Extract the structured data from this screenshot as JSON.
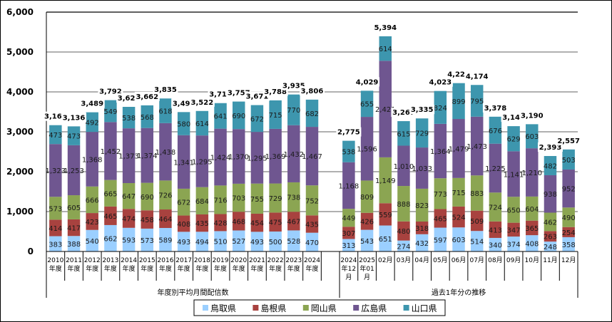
{
  "chart_data": {
    "type": "bar",
    "stacked": true,
    "title": "",
    "xlabel": "",
    "ylabel": "",
    "ylim": [
      0,
      6000
    ],
    "yticks": [
      0,
      1000,
      2000,
      3000,
      4000,
      5000,
      6000
    ],
    "ytick_labels": [
      "0",
      "1,000",
      "2,000",
      "3,000",
      "4,000",
      "5,000",
      "6,000"
    ],
    "grid": true,
    "legend_position": "bottom",
    "categories": [
      "2010\n年度",
      "2011\n年度",
      "2012\n年度",
      "2013\n年度",
      "2014\n年度",
      "2015\n年度",
      "2016\n年度",
      "2017\n年度",
      "2018\n年度",
      "2019\n年度",
      "2020\n年度",
      "2021\n年度",
      "2022\n年度",
      "2023\n年度",
      "2024\n年度",
      "",
      "2024\n年12\n月",
      "2025\n年01\n月",
      "02月",
      "03月",
      "04月",
      "05月",
      "06月",
      "07月",
      "08月",
      "09月",
      "10月",
      "11月",
      "12月"
    ],
    "groups": [
      {
        "label": "年度別平均月間配信数",
        "from": 0,
        "to": 15
      },
      {
        "label": "過去1年分の推移",
        "from": 16,
        "to": 28
      }
    ],
    "series": [
      {
        "name": "鳥取県",
        "color": "#9BCFFF",
        "values": [
          383,
          388,
          540,
          662,
          593,
          573,
          589,
          493,
          494,
          510,
          527,
          493,
          500,
          528,
          470,
          null,
          313,
          543,
          651,
          274,
          432,
          597,
          603,
          514,
          340,
          374,
          408,
          248,
          358
        ]
      },
      {
        "name": "島根県",
        "color": "#A8423F",
        "values": [
          414,
          417,
          423,
          465,
          474,
          458,
          464,
          408,
          435,
          428,
          468,
          454,
          475,
          467,
          435,
          null,
          307,
          426,
          559,
          480,
          318,
          465,
          524,
          509,
          413,
          347,
          365,
          263,
          254
        ]
      },
      {
        "name": "岡山県",
        "color": "#8BA552",
        "values": [
          573,
          605,
          666,
          665,
          647,
          690,
          726,
          672,
          684,
          716,
          703,
          755,
          729,
          738,
          752,
          null,
          449,
          809,
          1149,
          888,
          823,
          773,
          715,
          883,
          724,
          650,
          604,
          462,
          490
        ]
      },
      {
        "name": "広島県",
        "color": "#6F5690",
        "values": [
          1323,
          1253,
          1368,
          1452,
          1373,
          1374,
          1438,
          1341,
          1295,
          1424,
          1370,
          1295,
          1369,
          1432,
          1467,
          null,
          1168,
          1596,
          2421,
          1010,
          1033,
          1364,
          1479,
          1473,
          1225,
          1141,
          1210,
          938,
          952
        ]
      },
      {
        "name": "山口県",
        "color": "#3D96AE",
        "values": [
          473,
          473,
          492,
          549,
          538,
          568,
          618,
          580,
          614,
          641,
          690,
          672,
          715,
          770,
          682,
          null,
          538,
          655,
          614,
          615,
          729,
          824,
          899,
          795,
          676,
          629,
          603,
          482,
          503
        ]
      }
    ],
    "totals": [
      3166,
      3136,
      3489,
      3792,
      3625,
      3662,
      3835,
      3494,
      3522,
      3719,
      3757,
      3671,
      3788,
      3935,
      3806,
      null,
      2775,
      4029,
      5394,
      3267,
      3335,
      4023,
      4220,
      4174,
      3378,
      3141,
      3190,
      2393,
      2557
    ]
  }
}
